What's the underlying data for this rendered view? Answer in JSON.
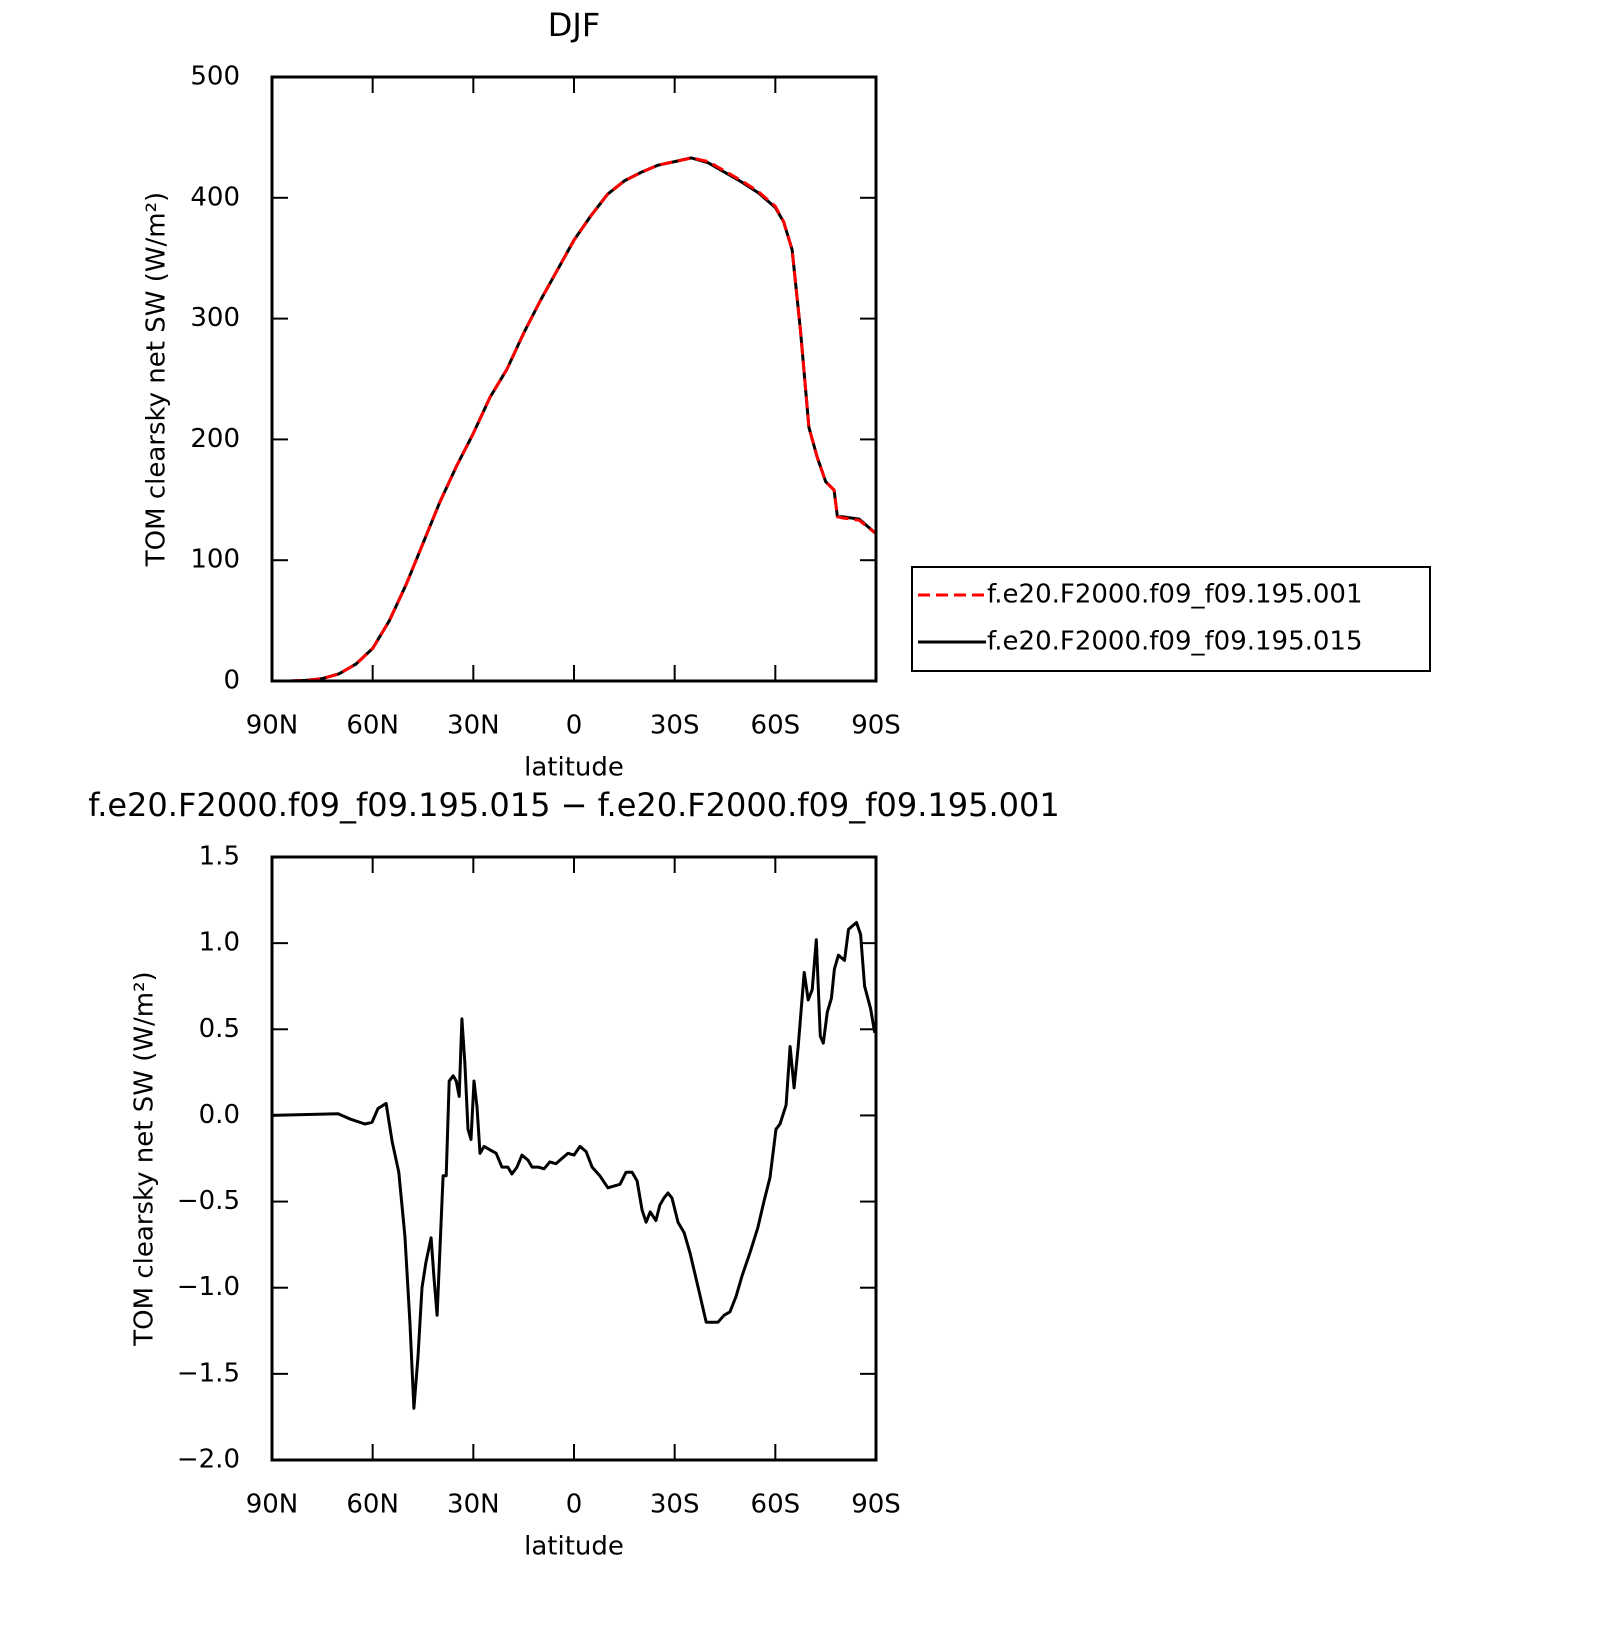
{
  "chart_data": [
    {
      "type": "line",
      "title": "DJF",
      "x_label": "latitude",
      "y_label": "TOM clearsky net SW (W/m²)",
      "x": [
        90,
        85,
        80,
        75,
        70,
        65,
        60,
        55,
        50,
        45,
        40,
        35,
        30,
        25,
        20,
        15,
        10,
        5,
        0,
        -5,
        -10,
        -15,
        -20,
        -25,
        -30,
        -35,
        -40,
        -45,
        -50,
        -55,
        -60,
        -62.5,
        -65,
        -67.5,
        -70,
        -72.5,
        -75,
        -77.5,
        -78.5,
        -80,
        -85,
        -90
      ],
      "series": [
        {
          "name": "f.e20.F2000.f09_f09.195.001",
          "color": "#ff0000",
          "dash": true,
          "values": [
            0,
            0,
            0.5,
            2,
            6,
            14,
            27,
            50,
            80,
            114,
            148,
            178,
            205,
            235,
            258,
            288,
            315,
            340,
            365,
            385,
            403,
            414,
            421,
            427,
            430,
            433,
            430,
            422,
            414,
            405,
            393,
            380,
            357,
            290,
            210,
            185,
            165,
            158,
            136,
            135,
            133,
            122
          ]
        },
        {
          "name": "f.e20.F2000.f09_f09.195.015",
          "color": "#000000",
          "dash": false,
          "values": [
            0,
            0,
            0.5,
            2,
            6,
            14,
            27,
            50,
            80,
            114,
            148,
            178,
            205,
            235,
            258,
            288,
            315,
            340,
            365,
            385,
            403,
            414,
            421,
            427,
            430,
            433,
            429,
            421,
            413,
            404,
            392,
            380,
            357,
            290,
            210,
            185,
            165,
            158,
            136,
            136,
            134,
            122
          ]
        }
      ],
      "xlim": [
        90,
        -90
      ],
      "xticks": [
        {
          "value": 90,
          "label": "90N"
        },
        {
          "value": 60,
          "label": "60N"
        },
        {
          "value": 30,
          "label": "30N"
        },
        0,
        {
          "value": -30,
          "label": "30S"
        },
        {
          "value": -60,
          "label": "60S"
        },
        {
          "value": -90,
          "label": "90S"
        }
      ],
      "ylim": [
        0,
        500
      ],
      "yticks": [
        0,
        100,
        200,
        300,
        400,
        500
      ]
    },
    {
      "type": "line",
      "title": "f.e20.F2000.f09_f09.195.015 − f.e20.F2000.f09_f09.195.001",
      "x_label": "latitude",
      "y_label": "TOM clearsky net SW (W/m²)",
      "x": [
        90,
        70.3,
        66.8,
        62.3,
        60.2,
        58.4,
        56,
        54.2,
        52.2,
        50.4,
        48.9,
        47.7,
        46.5,
        45.3,
        44.1,
        42.6,
        41.7,
        40.8,
        39,
        38.1,
        37.2,
        36,
        35.1,
        34.2,
        33.4,
        32.5,
        31.6,
        30.7,
        29.8,
        28.9,
        28,
        26.8,
        25,
        23.2,
        21.5,
        19.7,
        18.5,
        17,
        15.5,
        13.7,
        12.5,
        10.7,
        8.9,
        7.2,
        5.4,
        3.6,
        1.8,
        0,
        -1.8,
        -3.6,
        -5.4,
        -7.7,
        -10.1,
        -11.9,
        -13.7,
        -15.5,
        -17.3,
        -18.8,
        -20.3,
        -21.5,
        -22.7,
        -24.4,
        -25.6,
        -26.8,
        -28,
        -29.2,
        -31,
        -32.8,
        -34.6,
        -37,
        -39.4,
        -41.1,
        -42.9,
        -44.7,
        -46.5,
        -48.3,
        -50.1,
        -52.4,
        -54.8,
        -56.6,
        -58.4,
        -60.2,
        -61.4,
        -63.2,
        -64.4,
        -65.6,
        -66.8,
        -68.6,
        -69.8,
        -71,
        -72.2,
        -73.4,
        -74.3,
        -75.5,
        -76.7,
        -77.6,
        -78.8,
        -80.6,
        -81.8,
        -83,
        -84.2,
        -85.4,
        -86.6,
        -88.4,
        -89.6
      ],
      "series": [
        {
          "name": null,
          "color": "#000000",
          "dash": false,
          "values": [
            0,
            0.01,
            -0.02,
            -0.05,
            -0.04,
            0.04,
            0.07,
            -0.15,
            -0.33,
            -0.7,
            -1.2,
            -1.7,
            -1.4,
            -1.0,
            -0.85,
            -0.71,
            -0.95,
            -1.16,
            -0.35,
            -0.35,
            0.2,
            0.23,
            0.2,
            0.11,
            0.56,
            0.3,
            -0.08,
            -0.14,
            0.2,
            0.05,
            -0.22,
            -0.18,
            -0.2,
            -0.22,
            -0.3,
            -0.3,
            -0.34,
            -0.3,
            -0.23,
            -0.26,
            -0.3,
            -0.3,
            -0.31,
            -0.27,
            -0.28,
            -0.25,
            -0.22,
            -0.23,
            -0.18,
            -0.21,
            -0.3,
            -0.35,
            -0.42,
            -0.41,
            -0.4,
            -0.33,
            -0.33,
            -0.38,
            -0.55,
            -0.62,
            -0.56,
            -0.61,
            -0.52,
            -0.48,
            -0.45,
            -0.48,
            -0.62,
            -0.68,
            -0.8,
            -1.0,
            -1.2,
            -1.2,
            -1.2,
            -1.16,
            -1.14,
            -1.05,
            -0.93,
            -0.8,
            -0.65,
            -0.5,
            -0.36,
            -0.08,
            -0.05,
            0.06,
            0.4,
            0.16,
            0.4,
            0.83,
            0.67,
            0.73,
            1.02,
            0.46,
            0.42,
            0.6,
            0.68,
            0.85,
            0.93,
            0.9,
            1.08,
            1.1,
            1.12,
            1.05,
            0.75,
            0.62,
            0.48
          ]
        }
      ],
      "xlim": [
        90,
        -90
      ],
      "xticks": [
        {
          "value": 90,
          "label": "90N"
        },
        {
          "value": 60,
          "label": "60N"
        },
        {
          "value": 30,
          "label": "30N"
        },
        0,
        {
          "value": -30,
          "label": "30S"
        },
        {
          "value": -60,
          "label": "60S"
        },
        {
          "value": -90,
          "label": "90S"
        }
      ],
      "ylim": [
        -2,
        1.5
      ],
      "yticks": [
        {
          "value": 1.5,
          "label": "1.5"
        },
        {
          "value": 1,
          "label": "1.0"
        },
        {
          "value": 0.5,
          "label": "0.5"
        },
        {
          "value": 0,
          "label": "0.0"
        },
        {
          "value": -0.5,
          "label": "−0.5"
        },
        {
          "value": -1,
          "label": "−1.0"
        },
        {
          "value": -1.5,
          "label": "−1.5"
        },
        {
          "value": -2,
          "label": "−2.0"
        }
      ]
    }
  ]
}
